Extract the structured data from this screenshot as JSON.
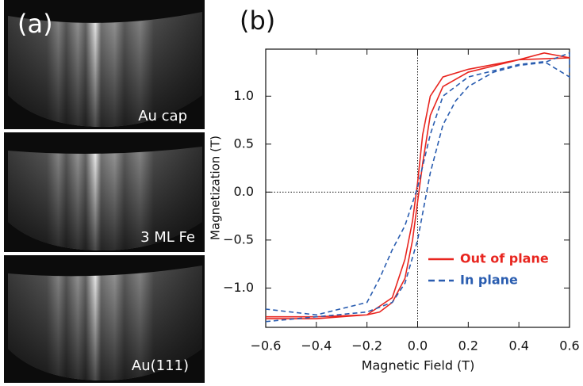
{
  "panel_a": {
    "label": "(a)",
    "images": [
      "Au cap",
      "3 ML Fe",
      "Au(111)"
    ]
  },
  "chart_data": {
    "type": "line",
    "panel_label": "(b)",
    "x_label": "Magnetic Field (T)",
    "y_label": "Magnetization (T)",
    "xlim": [
      -0.6,
      0.6
    ],
    "ylim": [
      -1.41,
      1.49
    ],
    "xticks": [
      {
        "value": -0.6,
        "label": "−0.6"
      },
      {
        "value": -0.4,
        "label": "−0.4"
      },
      {
        "value": -0.2,
        "label": "−0.2"
      },
      {
        "value": 0,
        "label": "0.0"
      },
      {
        "value": 0.2,
        "label": "0.2"
      },
      {
        "value": 0.4,
        "label": "0.4"
      },
      {
        "value": 0.6,
        "label": "0.6"
      }
    ],
    "yticks": [
      {
        "value": -1,
        "label": "−1.0"
      },
      {
        "value": -0.5,
        "label": "−0.5"
      },
      {
        "value": 0,
        "label": "0.0"
      },
      0.5,
      {
        "value": 1,
        "label": "1.0"
      }
    ],
    "zero_lines": true,
    "series": [
      {
        "name": "Out of plane",
        "color": "#e8251f",
        "dashed": false,
        "x": [
          -0.6,
          -0.4,
          -0.2,
          -0.15,
          -0.1,
          -0.05,
          -0.02,
          0,
          0.02,
          0.05,
          0.1,
          0.2,
          0.4,
          0.5,
          0.6,
          0.6,
          0.4,
          0.2,
          0.1,
          0.05,
          0.02,
          0,
          -0.02,
          -0.05,
          -0.1,
          -0.2,
          -0.4,
          -0.6
        ],
        "values": [
          -1.3,
          -1.3,
          -1.28,
          -1.25,
          -1.15,
          -0.9,
          -0.5,
          -0.1,
          0.3,
          0.8,
          1.1,
          1.25,
          1.38,
          1.45,
          1.4,
          1.4,
          1.38,
          1.28,
          1.2,
          1.0,
          0.6,
          0.1,
          -0.3,
          -0.7,
          -1.1,
          -1.28,
          -1.32,
          -1.32
        ]
      },
      {
        "name": "In plane",
        "color": "#2a5db0",
        "dashed": true,
        "x": [
          -0.6,
          -0.4,
          -0.2,
          -0.1,
          -0.05,
          0,
          0.05,
          0.1,
          0.15,
          0.2,
          0.3,
          0.4,
          0.5,
          0.6,
          0.6,
          0.5,
          0.4,
          0.2,
          0.1,
          0.05,
          0,
          -0.05,
          -0.1,
          -0.15,
          -0.2,
          -0.4,
          -0.6
        ],
        "values": [
          -1.35,
          -1.3,
          -1.25,
          -1.15,
          -0.95,
          -0.5,
          0.2,
          0.7,
          0.95,
          1.1,
          1.25,
          1.32,
          1.35,
          1.45,
          1.2,
          1.36,
          1.33,
          1.2,
          1.0,
          0.6,
          0.05,
          -0.35,
          -0.6,
          -0.9,
          -1.15,
          -1.28,
          -1.22
        ]
      }
    ]
  }
}
